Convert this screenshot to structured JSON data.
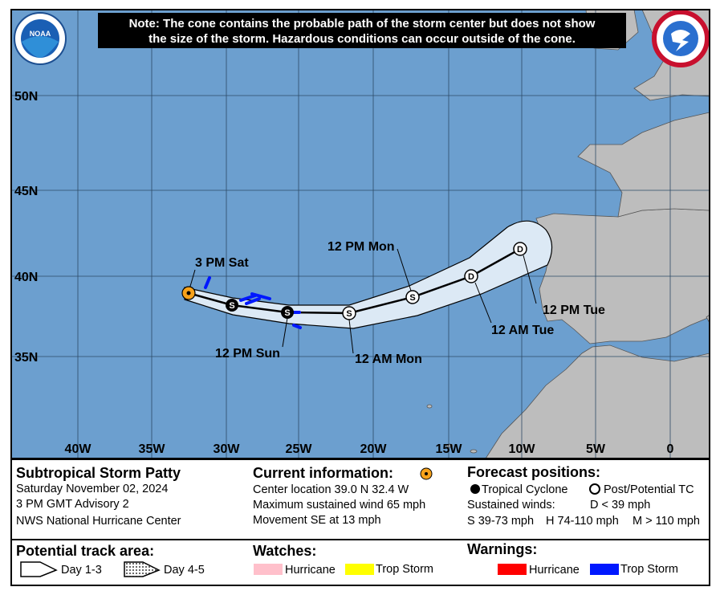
{
  "note": [
    "Note: The cone contains the probable path of the storm center but does not show",
    "the size of the storm. Hazardous conditions can occur outside of the cone."
  ],
  "logos": {
    "noaa": "NOAA"
  },
  "map": {
    "lat_labels": [
      "50N",
      "45N",
      "40N",
      "35N"
    ],
    "lon_labels": [
      "40W",
      "35W",
      "30W",
      "25W",
      "20W",
      "15W",
      "10W",
      "5W",
      "0"
    ],
    "point_labels": [
      "3 PM Sat",
      "12 PM Sun",
      "12 AM Mon",
      "12 PM Mon",
      "12 AM Tue",
      "12 PM Tue"
    ],
    "point_markers": [
      "S",
      "S",
      "S",
      "S",
      "D",
      "D"
    ]
  },
  "legend": {
    "storm": {
      "title": "Subtropical Storm Patty",
      "lines": [
        "Saturday November 02, 2024",
        "3 PM GMT Advisory 2",
        "NWS National Hurricane Center"
      ]
    },
    "current": {
      "title": "Current information:",
      "lines": [
        "Center location 39.0 N 32.4 W",
        "Maximum sustained wind 65 mph",
        "Movement SE at 13 mph"
      ]
    },
    "forecast": {
      "title": "Forecast positions:",
      "tropical": "Tropical Cyclone",
      "post": "Post/Potential TC",
      "winds": "Sustained winds:",
      "d": "D < 39 mph",
      "s": "S 39-73 mph",
      "h": "H 74-110 mph",
      "m": "M > 110 mph"
    },
    "track": {
      "title": "Potential track area:",
      "day13": "Day 1-3",
      "day45": "Day 4-5"
    },
    "watches": {
      "title": "Watches:",
      "hurricane": "Hurricane",
      "storm": "Trop Storm"
    },
    "warnings": {
      "title": "Warnings:",
      "hurricane": "Hurricane",
      "storm": "Trop Storm"
    }
  }
}
